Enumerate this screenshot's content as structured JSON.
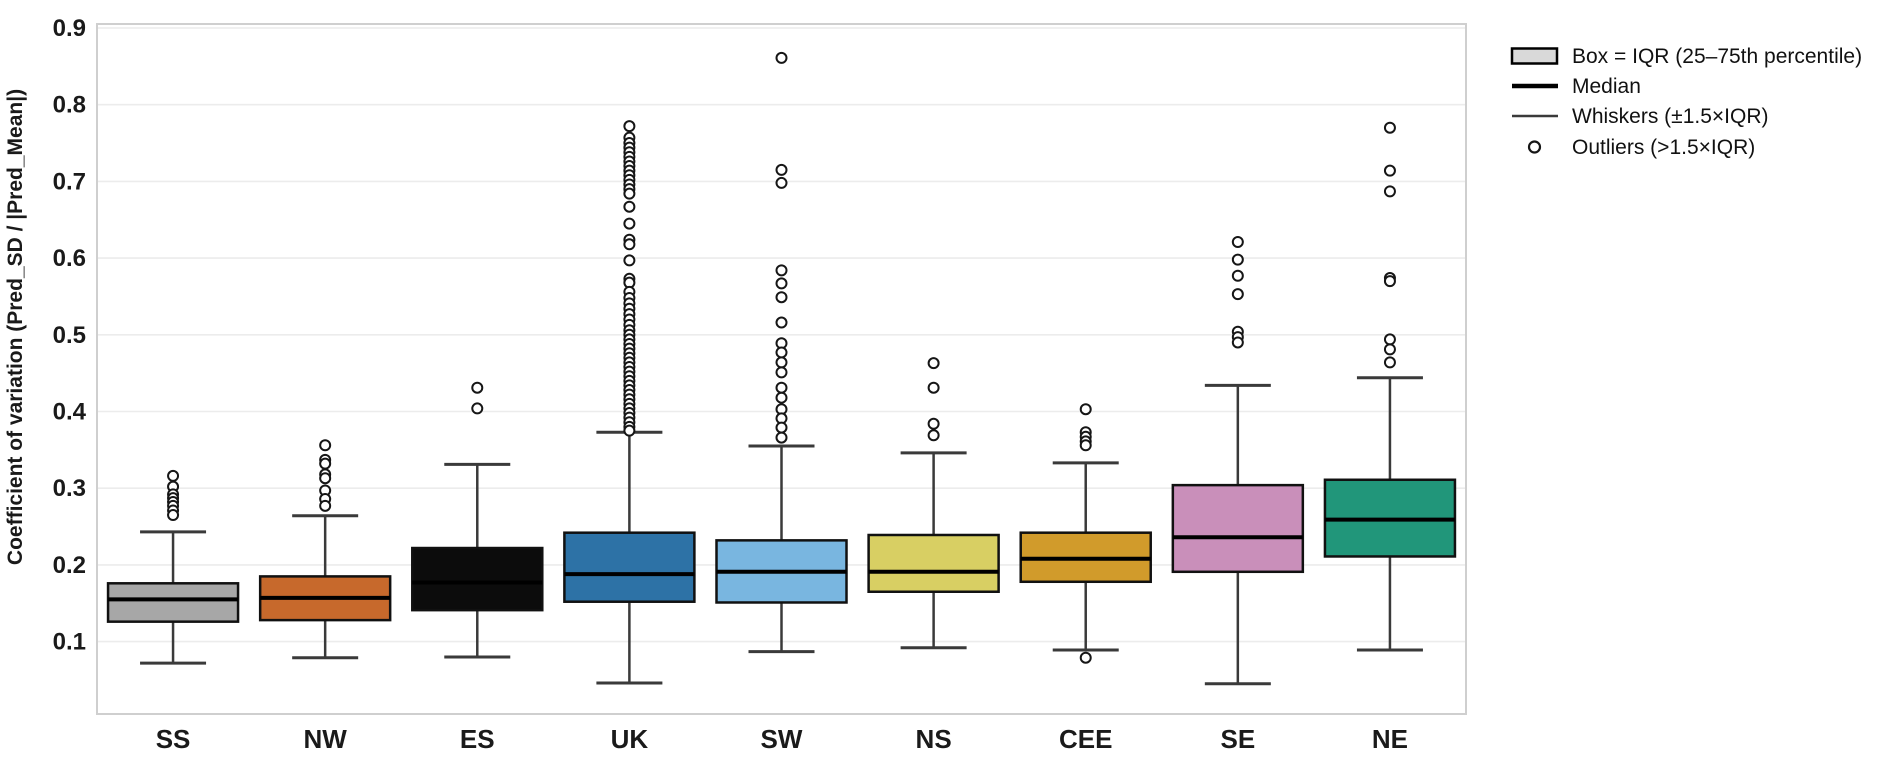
{
  "colors": {
    "background": "#ffffff",
    "plot_border": "#cfcfcf",
    "gridline": "#ececec",
    "whisker": "#3a3a3a",
    "box_edge": "#111111",
    "median": "#000000",
    "outlier_edge": "#161616",
    "tick_text": "#1a1a1a",
    "legend_text": "#111111",
    "legend_box_fill": "#d9d9d9"
  },
  "chart_data": {
    "type": "boxplot",
    "title": "",
    "xlabel": "",
    "ylabel": "Coefficient of variation (Pred_SD / |Pred_Mean|)",
    "ylim": [
      0.005,
      0.9
    ],
    "yticks": [
      0.9,
      0.8,
      0.7,
      0.6,
      0.5,
      0.4,
      0.3,
      0.2,
      0.1
    ],
    "grid": "horizontal-major",
    "legend_position": "top-right-outside",
    "categories": [
      "SS",
      "NW",
      "ES",
      "UK",
      "SW",
      "NS",
      "CEE",
      "SE",
      "NE"
    ],
    "series": [
      {
        "label": "SS",
        "color": "#a7a7a7",
        "whisker_low": 0.072,
        "q1": 0.126,
        "median": 0.155,
        "q3": 0.176,
        "whisker_high": 0.243,
        "outliers": [
          0.316,
          0.302,
          0.292,
          0.287,
          0.282,
          0.277,
          0.271,
          0.265
        ]
      },
      {
        "label": "NW",
        "color": "#c7692c",
        "whisker_low": 0.079,
        "q1": 0.128,
        "median": 0.157,
        "q3": 0.185,
        "whisker_high": 0.264,
        "outliers": [
          0.356,
          0.337,
          0.332,
          0.318,
          0.313,
          0.297,
          0.286,
          0.277
        ]
      },
      {
        "label": "ES",
        "color": "#0c0c0c",
        "whisker_low": 0.08,
        "q1": 0.141,
        "median": 0.177,
        "q3": 0.222,
        "whisker_high": 0.331,
        "outliers": [
          0.431,
          0.404
        ]
      },
      {
        "label": "UK",
        "color": "#2d72a6",
        "whisker_low": 0.046,
        "q1": 0.152,
        "median": 0.188,
        "q3": 0.242,
        "whisker_high": 0.373,
        "outliers": [
          0.772,
          0.757,
          0.75,
          0.744,
          0.738,
          0.732,
          0.726,
          0.72,
          0.714,
          0.708,
          0.702,
          0.696,
          0.69,
          0.684,
          0.667,
          0.645,
          0.624,
          0.618,
          0.597,
          0.573,
          0.568,
          0.556,
          0.548,
          0.541,
          0.534,
          0.527,
          0.52,
          0.513,
          0.506,
          0.5,
          0.494,
          0.488,
          0.482,
          0.476,
          0.47,
          0.464,
          0.458,
          0.452,
          0.446,
          0.44,
          0.434,
          0.428,
          0.422,
          0.416,
          0.41,
          0.404,
          0.398,
          0.392,
          0.386,
          0.38,
          0.375
        ]
      },
      {
        "label": "SW",
        "color": "#79b6e0",
        "whisker_low": 0.087,
        "q1": 0.151,
        "median": 0.191,
        "q3": 0.232,
        "whisker_high": 0.355,
        "outliers": [
          0.861,
          0.715,
          0.698,
          0.584,
          0.567,
          0.549,
          0.516,
          0.489,
          0.477,
          0.464,
          0.451,
          0.431,
          0.418,
          0.403,
          0.391,
          0.379,
          0.366
        ]
      },
      {
        "label": "NS",
        "color": "#d8cf63",
        "whisker_low": 0.092,
        "q1": 0.165,
        "median": 0.191,
        "q3": 0.239,
        "whisker_high": 0.346,
        "outliers": [
          0.463,
          0.431,
          0.384,
          0.369
        ]
      },
      {
        "label": "CEE",
        "color": "#d19b2b",
        "whisker_low": 0.089,
        "q1": 0.178,
        "median": 0.208,
        "q3": 0.242,
        "whisker_high": 0.333,
        "outliers": [
          0.403,
          0.373,
          0.367,
          0.361,
          0.356,
          0.079
        ]
      },
      {
        "label": "SE",
        "color": "#c98fba",
        "whisker_low": 0.045,
        "q1": 0.191,
        "median": 0.236,
        "q3": 0.304,
        "whisker_high": 0.434,
        "outliers": [
          0.621,
          0.598,
          0.577,
          0.553,
          0.504,
          0.497,
          0.49
        ]
      },
      {
        "label": "NE",
        "color": "#21967a",
        "whisker_low": 0.089,
        "q1": 0.211,
        "median": 0.259,
        "q3": 0.311,
        "whisker_high": 0.444,
        "outliers": [
          0.77,
          0.714,
          0.687,
          0.574,
          0.57,
          0.494,
          0.481,
          0.464
        ]
      }
    ],
    "legend": [
      {
        "symbol": "box-swatch",
        "label": "Box = IQR (25–75th percentile)"
      },
      {
        "symbol": "thick-line",
        "label": "Median"
      },
      {
        "symbol": "thin-line",
        "label": "Whiskers (±1.5×IQR)"
      },
      {
        "symbol": "circle",
        "label": "Outliers (>1.5×IQR)"
      }
    ]
  }
}
